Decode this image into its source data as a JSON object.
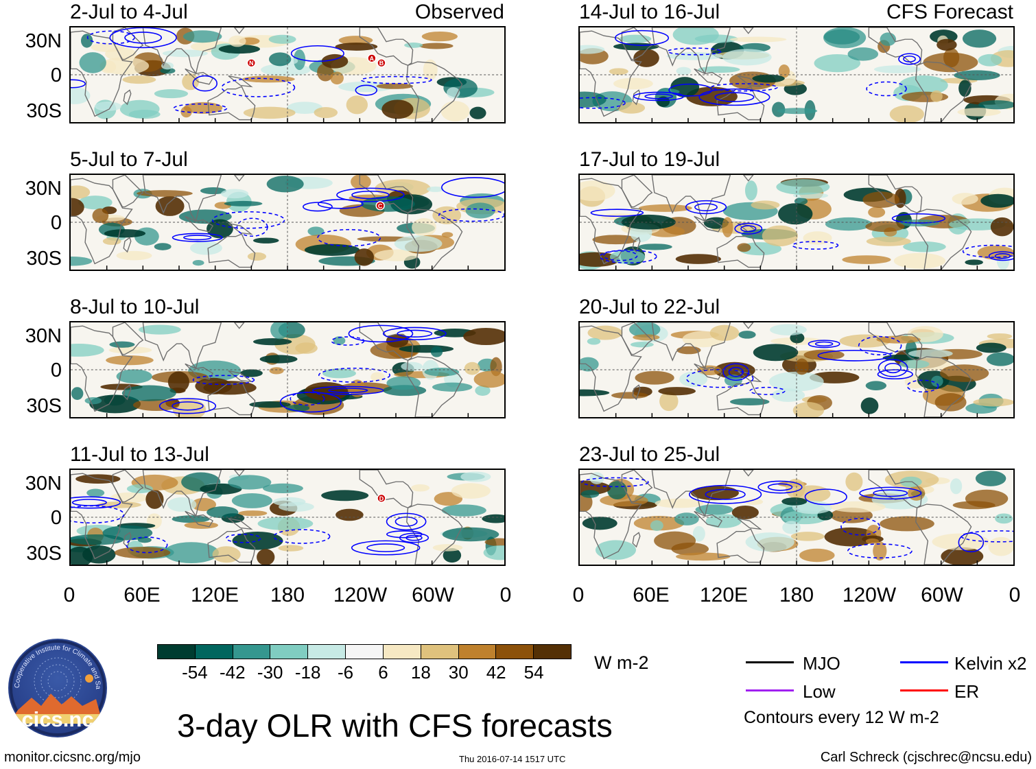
{
  "figure": {
    "title": "3-day OLR with CFS forecasts",
    "site": "monitor.cicsnc.org/mjo",
    "timestamp": "Thu 2016-07-14 1517 UTC",
    "author": "Carl Schreck (cjschrec@ncsu.edu)",
    "logo_text": "cics.nc",
    "logo_ring_text": "Cooperative Institute for Climate and Satellites"
  },
  "columns": [
    {
      "label": "Observed"
    },
    {
      "label": "CFS Forecast"
    }
  ],
  "panels": [
    {
      "title": "2-Jul to 4-Jul",
      "column": 0,
      "row": 0,
      "markers": [
        "N",
        "A",
        "B"
      ]
    },
    {
      "title": "5-Jul to 7-Jul",
      "column": 0,
      "row": 1,
      "markers": [
        "C"
      ]
    },
    {
      "title": "8-Jul to 10-Jul",
      "column": 0,
      "row": 2,
      "markers": []
    },
    {
      "title": "11-Jul to 13-Jul",
      "column": 0,
      "row": 3,
      "markers": [
        "D"
      ]
    },
    {
      "title": "14-Jul to 16-Jul",
      "column": 1,
      "row": 0,
      "markers": []
    },
    {
      "title": "17-Jul to 19-Jul",
      "column": 1,
      "row": 1,
      "markers": []
    },
    {
      "title": "20-Jul to 22-Jul",
      "column": 1,
      "row": 2,
      "markers": []
    },
    {
      "title": "23-Jul to 25-Jul",
      "column": 1,
      "row": 3,
      "markers": []
    }
  ],
  "axes": {
    "lat_labels": [
      "30N",
      "0",
      "30S"
    ],
    "lon_labels": [
      "0",
      "60E",
      "120E",
      "180",
      "120W",
      "60W",
      "0"
    ]
  },
  "colorbar": {
    "unit": "W m-2",
    "ticks": [
      "-54",
      "-42",
      "-30",
      "-18",
      "-6",
      "6",
      "18",
      "30",
      "42",
      "54"
    ],
    "colors": [
      "#003c30",
      "#01665e",
      "#35978f",
      "#80cdc1",
      "#c7eae5",
      "#f5f5f5",
      "#f6e8c3",
      "#dfc27d",
      "#bf812d",
      "#8c510a",
      "#543005"
    ]
  },
  "legend": {
    "items": [
      {
        "label": "MJO",
        "color": "#000000"
      },
      {
        "label": "Kelvin x2",
        "color": "#0000ff"
      },
      {
        "label": "Low",
        "color": "#a020f0"
      },
      {
        "label": "ER",
        "color": "#ff0000"
      }
    ],
    "note": "Contours every 12 W m-2"
  },
  "colors": {
    "continent": "#6e6e6e",
    "kelvin": "#0000ff",
    "marker": "#cc0000"
  }
}
